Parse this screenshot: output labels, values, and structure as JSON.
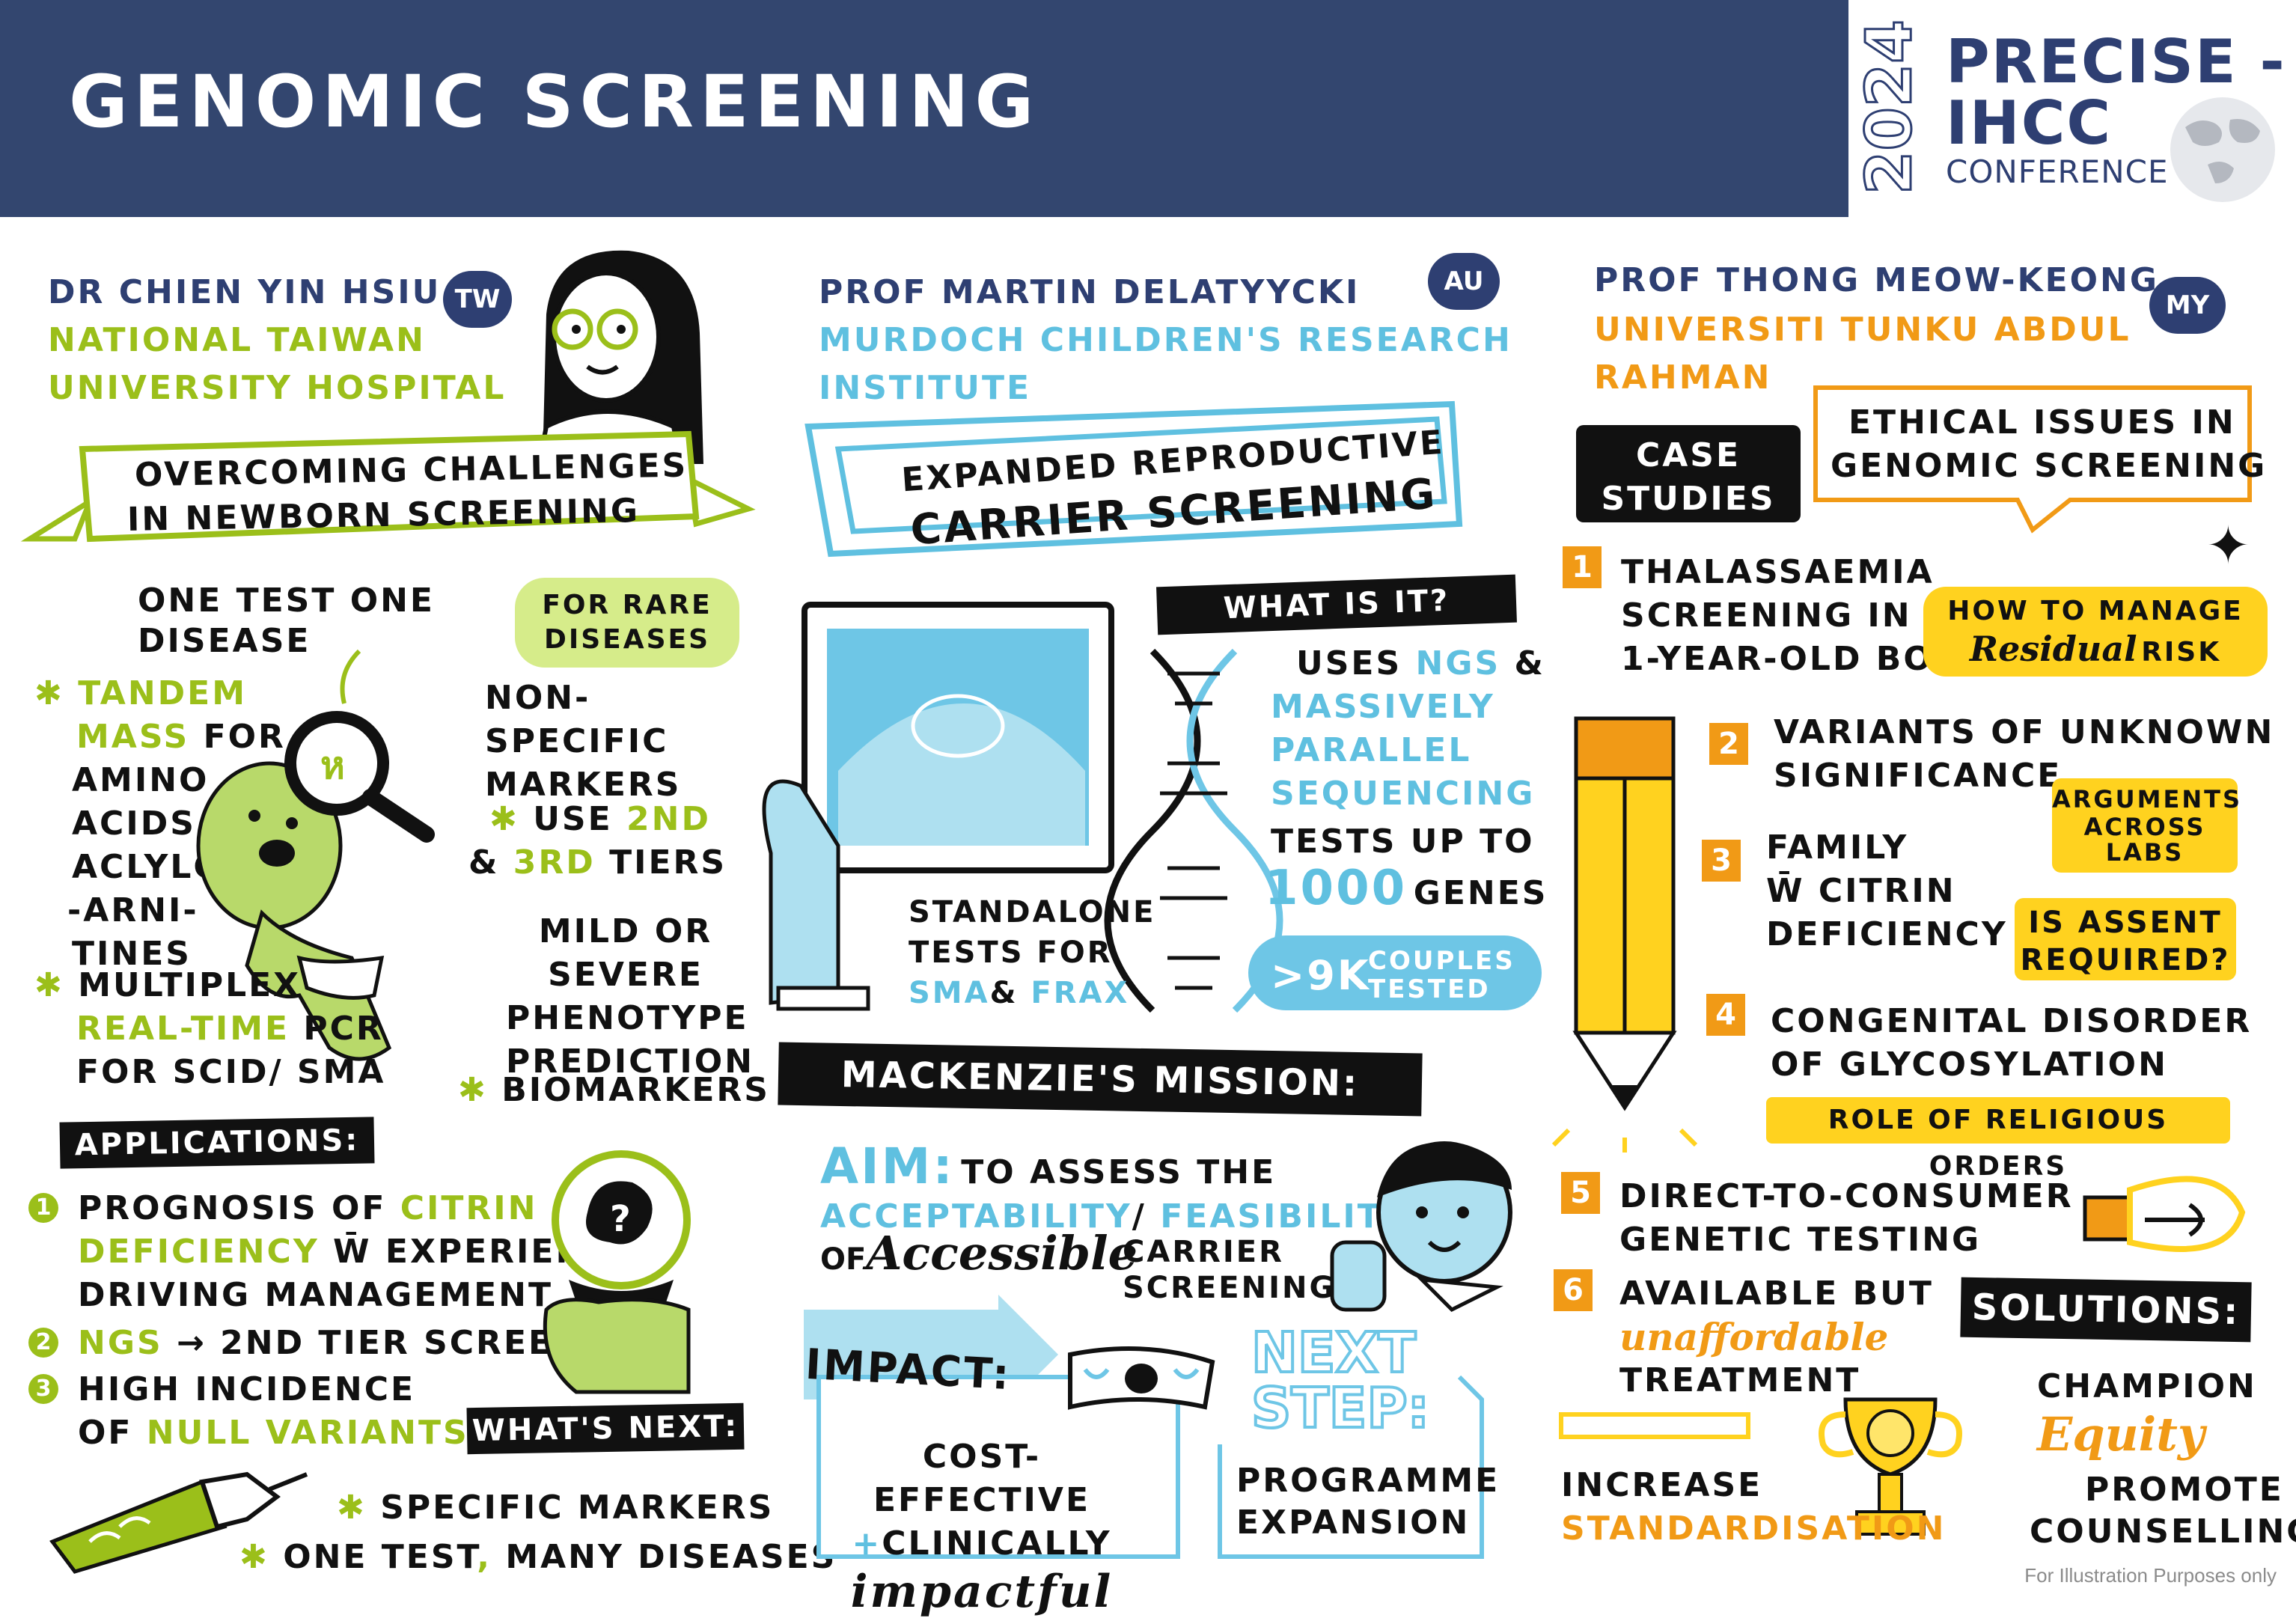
{
  "header": {
    "title": "GENOMIC SCREENING",
    "logo": {
      "year": "2024",
      "line1": "PRECISE -",
      "line2": "IHCC",
      "line3": "CONFERENCE"
    }
  },
  "col1": {
    "speaker": "DR CHIEN YIN HSIU",
    "country": "TW",
    "affil1": "NATIONAL TAIWAN",
    "affil2": "UNIVERSITY HOSPITAL",
    "banner1": "OVERCOMING CHALLENGES",
    "banner2": "IN NEWBORN SCREENING",
    "for_rare1": "FOR RARE",
    "for_rare2": "DISEASES",
    "one_test1": "ONE TEST ONE",
    "one_test2": "DISEASE",
    "tandem": {
      "a": "TANDEM",
      "b": "MASS",
      "c": "FOR",
      "d": "AMINO",
      "e": "ACIDS",
      "f": "ACLYLC",
      "g": "-ARNI-",
      "h": "TINES"
    },
    "multiplex": {
      "a": "MULTIPLEX",
      "b": "REAL-TIME",
      "c": "PCR",
      "d": "FOR SCID/ SMA"
    },
    "nonspec": {
      "a": "NON-",
      "b": "SPECIFIC",
      "c": "MARKERS"
    },
    "use2nd": {
      "a": "USE",
      "b": "2ND",
      "c": "&",
      "d": "3RD",
      "e": "TIERS"
    },
    "mild": {
      "a": "MILD OR",
      "b": "SEVERE",
      "c": "PHENOTYPE",
      "d": "PREDICTION"
    },
    "biomarkers": "BIOMARKERS",
    "applications": "APPLICATIONS:",
    "apps": [
      {
        "n": "1",
        "a": "PROGNOSIS OF",
        "b": "CITRIN",
        "c": "DEFICIENCY",
        "d": "W̄ EXPERIENCE",
        "e": "DRIVING MANAGEMENT"
      },
      {
        "n": "2",
        "a": "NGS",
        "b": "→ 2ND TIER SCREENING"
      },
      {
        "n": "3",
        "a": "HIGH INCIDENCE",
        "b": "OF",
        "c": "NULL VARIANTS"
      }
    ],
    "whats_next": "WHAT'S NEXT:",
    "next1": "SPECIFIC MARKERS",
    "next2a": "ONE TEST",
    "next2b": ",",
    "next2c": "MANY DISEASES"
  },
  "col2": {
    "speaker": "PROF MARTIN DELATYYCKI",
    "country": "AU",
    "affil1": "MURDOCH CHILDREN'S RESEARCH",
    "affil2": "INSTITUTE",
    "banner1": "EXPANDED REPRODUCTIVE",
    "banner2": "CARRIER SCREENING",
    "what_is_it": "WHAT IS IT?",
    "uses": {
      "a": "USES",
      "b": "NGS",
      "c": "&",
      "d": "MASSIVELY",
      "e": "PARALLEL",
      "f": "SEQUENCING"
    },
    "tests": {
      "a": "TESTS UP TO",
      "b": "1000",
      "c": "GENES"
    },
    "couples": {
      "a": ">9K",
      "b": "COUPLES",
      "c": "TESTED"
    },
    "standalone": {
      "a": "STANDALONE",
      "b": "TESTS FOR",
      "c": "SMA",
      "d": "&",
      "e": "FRAX"
    },
    "mission": "MACKENZIE'S MISSION:",
    "aim": {
      "label": "AIM:",
      "a": "TO ASSESS THE",
      "b": "ACCEPTABILITY",
      "c": "/",
      "d": "FEASIBILITY",
      "e": "OF",
      "f": "Accessible",
      "g": "CARRIER",
      "h": "SCREENING"
    },
    "impact": "IMPACT:",
    "cost": {
      "a": "COST-EFFECTIVE",
      "b": "+",
      "c": "CLINICALLY",
      "d": "impactful"
    },
    "next_step1": "NEXT",
    "next_step2": "STEP:",
    "programme1": "PROGRAMME",
    "programme2": "EXPANSION"
  },
  "col3": {
    "speaker": "PROF THONG MEOW-KEONG",
    "country": "MY",
    "affil1": "UNIVERSITI TUNKU ABDUL",
    "affil2": "RAHMAN",
    "case1": "CASE",
    "case2": "STUDIES",
    "ethical1": "ETHICAL ISSUES IN",
    "ethical2": "GENOMIC SCREENING",
    "cases": [
      {
        "n": "1",
        "a": "THALASSAEMIA",
        "b": "SCREENING IN",
        "c": "1-YEAR-OLD BOY"
      },
      {
        "n": "2",
        "a": "VARIANTS OF UNKNOWN",
        "b": "SIGNIFICANCE"
      },
      {
        "n": "3",
        "a": "FAMILY",
        "b": "W̄ CITRIN",
        "c": "DEFICIENCY"
      },
      {
        "n": "4",
        "a": "CONGENITAL DISORDER",
        "b": "OF GLYCOSYLATION"
      },
      {
        "n": "5",
        "a": "DIRECT-TO-CONSUMER",
        "b": "GENETIC TESTING"
      },
      {
        "n": "6",
        "a": "AVAILABLE BUT",
        "b": "unaffordable",
        "c": "TREATMENT"
      }
    ],
    "residual": {
      "a": "HOW TO MANAGE",
      "b": "Residual",
      "c": "RISK"
    },
    "arguments": {
      "a": "ARGUMENTS",
      "b": "ACROSS",
      "c": "LABS"
    },
    "assent": {
      "a": "IS ASSENT",
      "b": "REQUIRED?"
    },
    "religious": "ROLE OF RELIGIOUS ORDERS",
    "solutions": "SOLUTIONS:",
    "champion": "CHAMPION",
    "equity": "Equity",
    "increase": "INCREASE",
    "standard": "STANDARDISATION",
    "promote": "PROMOTE",
    "counselling": "COUNSELLING"
  },
  "footnote": "For Illustration Purposes only"
}
